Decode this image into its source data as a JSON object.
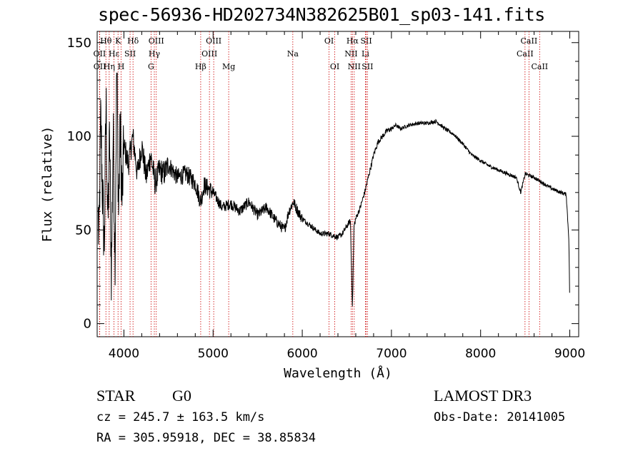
{
  "chart_data": {
    "type": "line",
    "title": "spec-56936-HD202734N382625B01_sp03-141.fits",
    "xlabel": "Wavelength (Å)",
    "ylabel": "Flux (relative)",
    "xlim": [
      3700,
      9100
    ],
    "ylim": [
      -7,
      156
    ],
    "xticks": [
      4000,
      5000,
      6000,
      7000,
      8000,
      9000
    ],
    "yticks": [
      0,
      50,
      100,
      150
    ],
    "series": [
      {
        "name": "spectrum",
        "x": [
          3700,
          3720,
          3740,
          3760,
          3780,
          3800,
          3820,
          3840,
          3860,
          3880,
          3900,
          3920,
          3940,
          3960,
          3980,
          4000,
          4050,
          4100,
          4150,
          4200,
          4250,
          4300,
          4350,
          4400,
          4450,
          4500,
          4600,
          4700,
          4800,
          4861,
          4900,
          5000,
          5100,
          5200,
          5300,
          5400,
          5500,
          5600,
          5700,
          5800,
          5850,
          5900,
          5950,
          6000,
          6100,
          6200,
          6300,
          6400,
          6450,
          6500,
          6540,
          6563,
          6580,
          6600,
          6650,
          6700,
          6750,
          6800,
          6850,
          6900,
          6950,
          7000,
          7050,
          7100,
          7200,
          7300,
          7400,
          7500,
          7600,
          7700,
          7800,
          7900,
          8000,
          8100,
          8200,
          8300,
          8400,
          8450,
          8500,
          8600,
          8700,
          8800,
          8900,
          8960,
          8990,
          9000
        ],
        "y": [
          80,
          40,
          110,
          70,
          40,
          120,
          50,
          100,
          25,
          105,
          35,
          140,
          60,
          105,
          65,
          95,
          85,
          100,
          80,
          95,
          78,
          90,
          75,
          82,
          80,
          85,
          78,
          80,
          75,
          65,
          74,
          70,
          62,
          64,
          60,
          65,
          58,
          62,
          55,
          50,
          60,
          65,
          60,
          56,
          52,
          48,
          48,
          46,
          48,
          52,
          55,
          8,
          52,
          56,
          62,
          70,
          80,
          90,
          97,
          100,
          103,
          104,
          106,
          104,
          106,
          107,
          107,
          108,
          104,
          101,
          96,
          90,
          87,
          84,
          82,
          80,
          78,
          70,
          80,
          78,
          75,
          72,
          70,
          69,
          45,
          10
        ]
      }
    ],
    "line_markers": [
      {
        "name": "OII",
        "x": 3727,
        "row": 1
      },
      {
        "name": "OII",
        "x": 3729,
        "row": 2
      },
      {
        "name": "Hθ",
        "x": 3798,
        "row": 0
      },
      {
        "name": "Hε",
        "x": 3889,
        "row": 1
      },
      {
        "name": "Hη",
        "x": 3835,
        "row": 2
      },
      {
        "name": "K",
        "x": 3934,
        "row": 0
      },
      {
        "name": "H",
        "x": 3969,
        "row": 2
      },
      {
        "name": "SII",
        "x": 4069,
        "row": 1
      },
      {
        "name": "Hδ",
        "x": 4102,
        "row": 0
      },
      {
        "name": "OIII",
        "x": 4363,
        "row": 0
      },
      {
        "name": "Hγ",
        "x": 4341,
        "row": 1
      },
      {
        "name": "G",
        "x": 4304,
        "row": 2
      },
      {
        "name": "Hβ",
        "x": 4861,
        "row": 2
      },
      {
        "name": "OIII",
        "x": 4959,
        "row": 1
      },
      {
        "name": "OIII",
        "x": 5007,
        "row": 0
      },
      {
        "name": "Mg",
        "x": 5175,
        "row": 2
      },
      {
        "name": "Na",
        "x": 5894,
        "row": 1
      },
      {
        "name": "OI",
        "x": 6300,
        "row": 0
      },
      {
        "name": "OI",
        "x": 6364,
        "row": 2
      },
      {
        "name": "NII",
        "x": 6548,
        "row": 1
      },
      {
        "name": "NII",
        "x": 6583,
        "row": 2
      },
      {
        "name": "Hα",
        "x": 6563,
        "row": 0
      },
      {
        "name": "SII",
        "x": 6717,
        "row": 0
      },
      {
        "name": "Li",
        "x": 6708,
        "row": 1
      },
      {
        "name": "SII",
        "x": 6731,
        "row": 2
      },
      {
        "name": "CaII",
        "x": 8498,
        "row": 1
      },
      {
        "name": "CaII",
        "x": 8542,
        "row": 0
      },
      {
        "name": "CaII",
        "x": 8662,
        "row": 2
      }
    ]
  },
  "info": {
    "object_class": "STAR",
    "subclass": "G0",
    "survey": "LAMOST DR3",
    "velocity": "cz = 245.7 ± 163.5 km/s",
    "obs_date": "Obs-Date: 20141005",
    "coords": "RA = 305.95918, DEC =  38.85834"
  },
  "colors": {
    "spectrum": "#000000",
    "marker_line": "#cc0000",
    "axes": "#000000",
    "background": "#ffffff"
  }
}
